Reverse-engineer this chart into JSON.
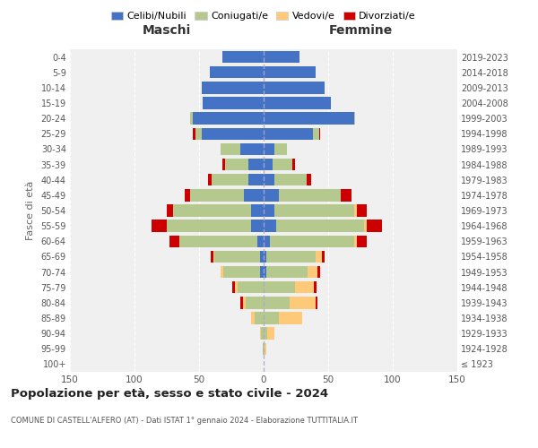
{
  "age_groups": [
    "100+",
    "95-99",
    "90-94",
    "85-89",
    "80-84",
    "75-79",
    "70-74",
    "65-69",
    "60-64",
    "55-59",
    "50-54",
    "45-49",
    "40-44",
    "35-39",
    "30-34",
    "25-29",
    "20-24",
    "15-19",
    "10-14",
    "5-9",
    "0-4"
  ],
  "birth_years": [
    "≤ 1923",
    "1924-1928",
    "1929-1933",
    "1934-1938",
    "1939-1943",
    "1944-1948",
    "1949-1953",
    "1954-1958",
    "1959-1963",
    "1964-1968",
    "1969-1973",
    "1974-1978",
    "1979-1983",
    "1984-1988",
    "1989-1993",
    "1994-1998",
    "1999-2003",
    "2004-2008",
    "2009-2013",
    "2014-2018",
    "2019-2023"
  ],
  "maschi": {
    "celibi": [
      0,
      0,
      0,
      0,
      0,
      0,
      3,
      3,
      5,
      10,
      10,
      15,
      12,
      12,
      18,
      48,
      55,
      47,
      48,
      42,
      32
    ],
    "coniugati": [
      0,
      1,
      2,
      7,
      14,
      20,
      28,
      35,
      60,
      65,
      60,
      42,
      28,
      18,
      15,
      5,
      2,
      0,
      0,
      0,
      0
    ],
    "vedovi": [
      0,
      0,
      1,
      3,
      2,
      2,
      2,
      1,
      0,
      0,
      0,
      0,
      0,
      0,
      0,
      0,
      0,
      0,
      0,
      0,
      0
    ],
    "divorziati": [
      0,
      0,
      0,
      0,
      2,
      2,
      0,
      2,
      8,
      12,
      5,
      4,
      3,
      2,
      0,
      2,
      0,
      0,
      0,
      0,
      0
    ]
  },
  "femmine": {
    "nubili": [
      0,
      0,
      0,
      0,
      0,
      0,
      2,
      2,
      5,
      10,
      8,
      12,
      8,
      7,
      8,
      38,
      70,
      52,
      47,
      40,
      28
    ],
    "coniugate": [
      0,
      1,
      3,
      12,
      20,
      24,
      32,
      38,
      65,
      68,
      62,
      48,
      25,
      15,
      10,
      5,
      1,
      0,
      0,
      0,
      0
    ],
    "vedove": [
      0,
      1,
      5,
      18,
      20,
      15,
      8,
      5,
      2,
      2,
      2,
      0,
      0,
      0,
      0,
      0,
      0,
      0,
      0,
      0,
      0
    ],
    "divorziate": [
      0,
      0,
      0,
      0,
      2,
      2,
      2,
      2,
      8,
      12,
      8,
      8,
      4,
      2,
      0,
      1,
      0,
      0,
      0,
      0,
      0
    ]
  },
  "color_celibi": "#4472c4",
  "color_coniugati": "#b5c98e",
  "color_vedovi": "#ffc97a",
  "color_divorziati": "#cc0000",
  "title": "Popolazione per età, sesso e stato civile - 2024",
  "subtitle": "COMUNE DI CASTELL'ALFERO (AT) - Dati ISTAT 1° gennaio 2024 - Elaborazione TUTTITALIA.IT",
  "ylabel": "Fasce di età",
  "xlabel_left": "Maschi",
  "xlabel_right": "Femmine",
  "xlim": 150,
  "bg_color": "#f0f0f0",
  "legend_labels": [
    "Celibi/Nubili",
    "Coniugati/e",
    "Vedovi/e",
    "Divorziati/e"
  ]
}
